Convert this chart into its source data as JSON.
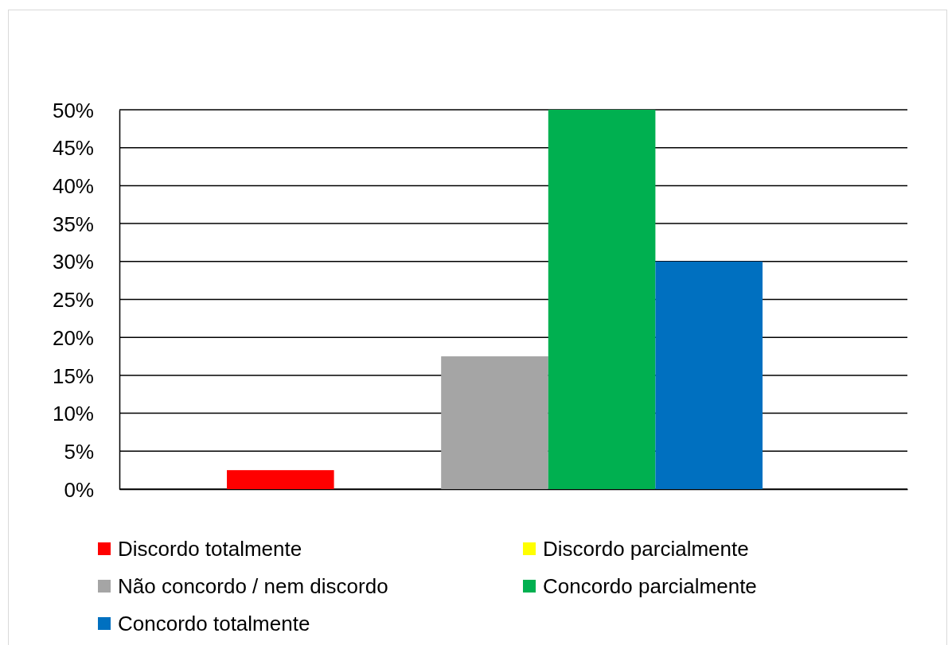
{
  "chart_data": {
    "type": "bar",
    "categories": [
      null
    ],
    "series": [
      {
        "name": "Discordo totalmente",
        "color": "#ff0000",
        "values": [
          2.5
        ]
      },
      {
        "name": "Discordo parcialmente",
        "color": "#ffff00",
        "values": [
          0
        ]
      },
      {
        "name": "Não concordo / nem discordo",
        "color": "#a5a5a5",
        "values": [
          17.5
        ]
      },
      {
        "name": "Concordo parcialmente",
        "color": "#00b050",
        "values": [
          50
        ]
      },
      {
        "name": "Concordo totalmente",
        "color": "#0070c0",
        "values": [
          30
        ]
      }
    ],
    "ylim": [
      0,
      50
    ],
    "yticks": [
      {
        "value": 0,
        "label": "0%"
      },
      {
        "value": 5,
        "label": "5%"
      },
      {
        "value": 10,
        "label": "10%"
      },
      {
        "value": 15,
        "label": "15%"
      },
      {
        "value": 20,
        "label": "20%"
      },
      {
        "value": 25,
        "label": "25%"
      },
      {
        "value": 30,
        "label": "30%"
      },
      {
        "value": 35,
        "label": "35%"
      },
      {
        "value": 40,
        "label": "40%"
      },
      {
        "value": 45,
        "label": "45%"
      },
      {
        "value": 50,
        "label": "50%"
      }
    ],
    "grid": "y",
    "legend": "bottom",
    "tick_labels": "y"
  }
}
